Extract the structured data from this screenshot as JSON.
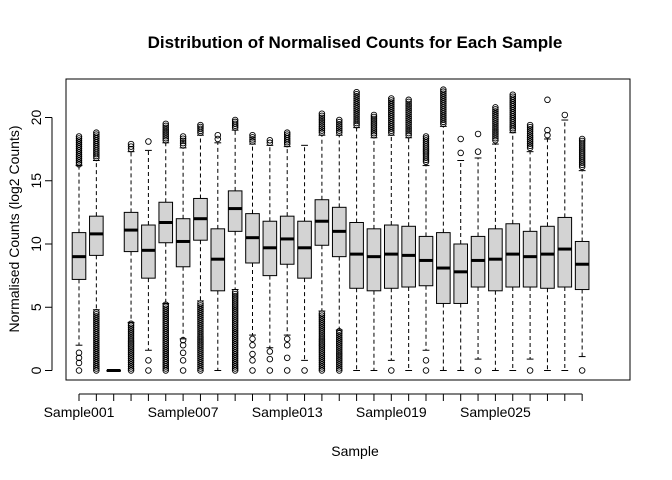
{
  "chart_data": {
    "type": "boxplot",
    "title": "Distribution of Normalised Counts for Each Sample",
    "xlabel": "Sample",
    "ylabel": "Normalised Counts (log2 Counts)",
    "ylim": [
      -0.5,
      22.8
    ],
    "yticks": [
      0,
      5,
      10,
      15,
      20
    ],
    "xtick_labels": [
      {
        "index": 0,
        "label": "Sample001"
      },
      {
        "index": 6,
        "label": "Sample007"
      },
      {
        "index": 12,
        "label": "Sample013"
      },
      {
        "index": 18,
        "label": "Sample019"
      },
      {
        "index": 24,
        "label": "Sample025"
      }
    ],
    "colors": {
      "box_fill": "#d3d3d3",
      "stroke": "#000000"
    },
    "samples": [
      {
        "q1": 7.2,
        "median": 9.0,
        "q3": 10.9,
        "whisker_low": 2.0,
        "whisker_high": 16.2,
        "outliers_low": [
          0,
          0.6,
          1.0,
          1.4
        ],
        "outliers_high_from": 16.3,
        "outliers_high_to": 18.5
      },
      {
        "q1": 9.1,
        "median": 10.8,
        "q3": 12.2,
        "whisker_low": 4.8,
        "whisker_high": 16.6,
        "outliers_low_from": 0,
        "outliers_low_to": 4.6,
        "outliers_high_from": 16.8,
        "outliers_high_to": 18.8
      },
      {
        "q1": 0,
        "median": 0,
        "q3": 0,
        "whisker_low": 0,
        "whisker_high": 0
      },
      {
        "q1": 9.4,
        "median": 11.1,
        "q3": 12.5,
        "whisker_low": 3.8,
        "whisker_high": 17.3,
        "outliers_low_from": 0,
        "outliers_low_to": 3.7,
        "outliers_high_from": 17.5,
        "outliers_high_to": 17.9
      },
      {
        "q1": 7.3,
        "median": 9.5,
        "q3": 11.5,
        "whisker_low": 1.6,
        "whisker_high": 17.4,
        "outliers_low": [
          0,
          0.8
        ],
        "outliers_high": [
          18.1
        ]
      },
      {
        "q1": 10.1,
        "median": 11.7,
        "q3": 13.3,
        "whisker_low": 5.3,
        "whisker_high": 18.0,
        "outliers_low_from": 0,
        "outliers_low_to": 5.2,
        "outliers_high_from": 18.2,
        "outliers_high_to": 19.5
      },
      {
        "q1": 8.2,
        "median": 10.2,
        "q3": 12.0,
        "whisker_low": 2.5,
        "whisker_high": 17.6,
        "outliers_low": [
          0,
          0.8,
          1.4,
          2.0,
          2.4
        ],
        "outliers_high_from": 17.8,
        "outliers_high_to": 18.5
      },
      {
        "q1": 10.3,
        "median": 12.0,
        "q3": 13.6,
        "whisker_low": 5.5,
        "whisker_high": 18.6,
        "outliers_low_from": 0,
        "outliers_low_to": 5.3,
        "outliers_high_from": 18.8,
        "outliers_high_to": 19.4
      },
      {
        "q1": 6.3,
        "median": 8.8,
        "q3": 11.2,
        "whisker_low": 0.0,
        "whisker_high": 18.0,
        "outliers_high": [
          18.3,
          18.6
        ]
      },
      {
        "q1": 11.0,
        "median": 12.8,
        "q3": 14.2,
        "whisker_low": 6.4,
        "whisker_high": 19.0,
        "outliers_low_from": 0,
        "outliers_low_to": 6.2,
        "outliers_high_from": 19.2,
        "outliers_high_to": 19.8
      },
      {
        "q1": 8.5,
        "median": 10.5,
        "q3": 12.4,
        "whisker_low": 2.8,
        "whisker_high": 17.9,
        "outliers_low": [
          0,
          0.8,
          1.3,
          2.0,
          2.5
        ],
        "outliers_high_from": 18.1,
        "outliers_high_to": 18.6
      },
      {
        "q1": 7.5,
        "median": 9.7,
        "q3": 11.8,
        "whisker_low": 1.8,
        "whisker_high": 17.8,
        "outliers_low": [
          0,
          0.9,
          1.5
        ],
        "outliers_high": [
          18.0,
          18.2
        ]
      },
      {
        "q1": 8.4,
        "median": 10.4,
        "q3": 12.2,
        "whisker_low": 2.8,
        "whisker_high": 17.7,
        "outliers_low": [
          0,
          1.0,
          2.0,
          2.5
        ],
        "outliers_high_from": 17.9,
        "outliers_high_to": 18.8
      },
      {
        "q1": 7.3,
        "median": 9.7,
        "q3": 11.8,
        "whisker_low": 0.8,
        "whisker_high": 17.8,
        "outliers_low": [
          0
        ]
      },
      {
        "q1": 9.9,
        "median": 11.8,
        "q3": 13.5,
        "whisker_low": 4.7,
        "whisker_high": 18.6,
        "outliers_low_from": 0,
        "outliers_low_to": 4.5,
        "outliers_high_from": 18.8,
        "outliers_high_to": 20.3
      },
      {
        "q1": 9.0,
        "median": 11.0,
        "q3": 12.9,
        "whisker_low": 3.2,
        "whisker_high": 18.6,
        "outliers_low_from": 0,
        "outliers_low_to": 3.1,
        "outliers_high_from": 18.8,
        "outliers_high_to": 19.8
      },
      {
        "q1": 6.5,
        "median": 9.2,
        "q3": 11.7,
        "whisker_low": 0.0,
        "whisker_high": 19.2,
        "outliers_high_from": 19.4,
        "outliers_high_to": 22.0
      },
      {
        "q1": 6.3,
        "median": 9.0,
        "q3": 11.2,
        "whisker_low": 0.0,
        "whisker_high": 18.4,
        "outliers_high_from": 18.6,
        "outliers_high_to": 20.2
      },
      {
        "q1": 6.5,
        "median": 9.2,
        "q3": 11.5,
        "whisker_low": 0.8,
        "whisker_high": 18.6,
        "outliers_low": [
          0
        ],
        "outliers_high_from": 18.8,
        "outliers_high_to": 21.5
      },
      {
        "q1": 6.6,
        "median": 9.1,
        "q3": 11.4,
        "whisker_low": 0.0,
        "whisker_high": 18.4,
        "outliers_high_from": 18.6,
        "outliers_high_to": 21.4
      },
      {
        "q1": 6.7,
        "median": 8.7,
        "q3": 10.6,
        "whisker_low": 1.6,
        "whisker_high": 16.2,
        "outliers_low": [
          0,
          0.8
        ],
        "outliers_high_from": 16.5,
        "outliers_high_to": 18.5
      },
      {
        "q1": 5.3,
        "median": 8.1,
        "q3": 10.9,
        "whisker_low": 0.0,
        "whisker_high": 19.3,
        "outliers_high_from": 19.5,
        "outliers_high_to": 22.2
      },
      {
        "q1": 5.3,
        "median": 7.8,
        "q3": 10.0,
        "whisker_low": 0.0,
        "whisker_high": 16.6,
        "outliers_high": [
          17.2,
          18.3
        ]
      },
      {
        "q1": 6.6,
        "median": 8.7,
        "q3": 10.6,
        "whisker_low": 0.9,
        "whisker_high": 16.8,
        "outliers_low": [
          0
        ],
        "outliers_high": [
          17.3,
          18.7
        ]
      },
      {
        "q1": 6.3,
        "median": 8.8,
        "q3": 11.2,
        "whisker_low": 0.0,
        "whisker_high": 17.9,
        "outliers_high_from": 18.2,
        "outliers_high_to": 20.8
      },
      {
        "q1": 6.6,
        "median": 9.2,
        "q3": 11.6,
        "whisker_low": 0.0,
        "whisker_high": 18.8,
        "outliers_high_from": 19.0,
        "outliers_high_to": 21.8
      },
      {
        "q1": 6.6,
        "median": 9.0,
        "q3": 11.0,
        "whisker_low": 0.9,
        "whisker_high": 17.3,
        "outliers_low": [
          0
        ],
        "outliers_high_from": 17.6,
        "outliers_high_to": 19.4
      },
      {
        "q1": 6.5,
        "median": 9.2,
        "q3": 11.4,
        "whisker_low": 0.0,
        "whisker_high": 18.3,
        "outliers_high": [
          18.6,
          19.0,
          21.4
        ]
      },
      {
        "q1": 6.6,
        "median": 9.6,
        "q3": 12.1,
        "whisker_low": 0.0,
        "whisker_high": 19.8,
        "outliers_high": [
          20.2
        ]
      },
      {
        "q1": 6.4,
        "median": 8.4,
        "q3": 10.2,
        "whisker_low": 1.1,
        "whisker_high": 15.8,
        "outliers_low": [
          0
        ],
        "outliers_high_from": 16.1,
        "outliers_high_to": 18.3
      }
    ]
  }
}
